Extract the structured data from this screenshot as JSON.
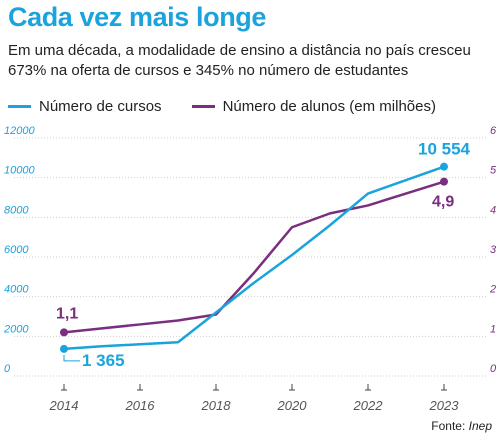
{
  "title": "Cada vez mais longe",
  "subtitle": "Em uma década, a modalidade de ensino a distância no país cresceu 673% na oferta de cursos e 345% no número de estudantes",
  "source_label": "Fonte:",
  "source_name": "Inep",
  "colors": {
    "courses": "#1aa3dc",
    "students": "#7a2e7f",
    "left_ticks": "#1aa3dc",
    "right_ticks": "#7a2e7f",
    "grid": "#cfcfcf"
  },
  "chart_data": {
    "type": "line",
    "x": [
      2014,
      2015,
      2016,
      2017,
      2018,
      2019,
      2020,
      2021,
      2022,
      2023
    ],
    "x_tick_labels": [
      "2014",
      "2016",
      "2018",
      "2020",
      "2022",
      "2023"
    ],
    "x_tick_values": [
      2014,
      2015.5,
      2017.2,
      2018.9,
      2020.6,
      2022.3
    ],
    "x_display": [
      2014,
      2015,
      2016,
      2017,
      2018,
      2019,
      2020,
      2021,
      2022,
      2023
    ],
    "y_left": {
      "ylim": [
        0,
        12000
      ],
      "ticks": [
        "0",
        "2000",
        "4000",
        "6000",
        "8000",
        "10000",
        "12000"
      ]
    },
    "y_right": {
      "ylim": [
        0,
        6
      ],
      "ticks": [
        "0",
        "1",
        "2",
        "3",
        "4",
        "5",
        "6"
      ]
    },
    "series": [
      {
        "name": "Número de cursos",
        "axis": "left",
        "values": [
          1365,
          1500,
          1600,
          1700,
          3200,
          4700,
          6100,
          7600,
          9200,
          10554
        ]
      },
      {
        "name": "Número de alunos (em milhões)",
        "axis": "right",
        "values": [
          1.1,
          1.2,
          1.3,
          1.4,
          1.55,
          2.6,
          3.75,
          4.1,
          4.3,
          4.9
        ]
      }
    ],
    "labels": {
      "courses_first": "1 365",
      "courses_last": "10 554",
      "students_first": "1,1",
      "students_last": "4,9"
    },
    "grid": true,
    "legend": "top-left"
  }
}
